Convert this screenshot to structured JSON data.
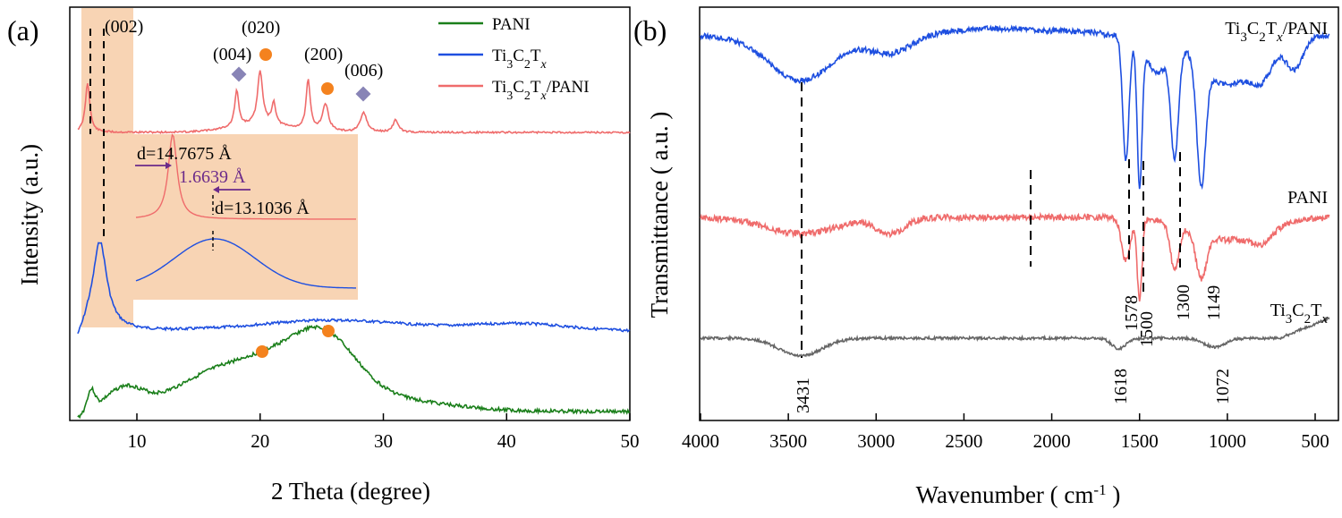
{
  "chart_data": [
    {
      "panel": "(a)",
      "type": "line",
      "xlabel": "2 Theta (degree)",
      "ylabel": "Intensity (a.u.)",
      "xlim": [
        4,
        50
      ],
      "xticks": [
        "10",
        "20",
        "30",
        "40",
        "50"
      ],
      "grid": false,
      "legend_position": "top-right",
      "series": [
        {
          "name": "PANI",
          "color": "#1a7f1a"
        },
        {
          "name": "Ti3C2Tx",
          "color": "#1e4fe0"
        },
        {
          "name": "Ti3C2Tx/PANI",
          "color": "#ef6b6b"
        }
      ],
      "peak_labels": [
        "(002)",
        "(004)",
        "(020)",
        "(200)",
        "(006)"
      ],
      "inset": {
        "labels": [
          "d=14.7675 Å",
          "1.6639 Å",
          "d=13.1036 Å"
        ]
      },
      "marker_colors": {
        "ti3c2tx": "#8884b6",
        "pani": "#f4821e",
        "highlight": "#f7cda7"
      }
    },
    {
      "panel": "(b)",
      "type": "line",
      "xlabel": "Wavenumber ( cm⁻¹ )",
      "ylabel": "Transmittance ( a.u. )",
      "xlim": [
        4000,
        400
      ],
      "xticks": [
        "4000",
        "3500",
        "3000",
        "2500",
        "2000",
        "1500",
        "1000",
        "500"
      ],
      "grid": false,
      "series": [
        {
          "name": "Ti3C2Tx/PANI",
          "color": "#1e4fe0"
        },
        {
          "name": "PANI",
          "color": "#ef6b6b"
        },
        {
          "name": "Ti3C2Tx",
          "color": "#666666"
        }
      ],
      "annotated_wavenumbers": [
        "3431",
        "1578",
        "1500",
        "1300",
        "1149",
        "1618",
        "1072"
      ]
    }
  ],
  "text": {
    "panel_a": "(a)",
    "panel_b": "(b)",
    "a_xlabel": "2 Theta (degree)",
    "a_ylabel": "Intensity (a.u.)",
    "b_xlabel_main": "Wavenumber ( cm",
    "b_xlabel_sup": "-1",
    "b_xlabel_end": " )",
    "b_ylabel": "Transmittance ( a.u. )",
    "legend_pani": "PANI",
    "peak_002": "(002)",
    "peak_004": "(004)",
    "peak_020": "(020)",
    "peak_200": "(200)",
    "peak_006": "(006)",
    "inset_d1": "d=14.7675 Å",
    "inset_delta": "1.6639 Å",
    "inset_d2": "d=13.1036 Å",
    "b_label_pani": "PANI"
  }
}
